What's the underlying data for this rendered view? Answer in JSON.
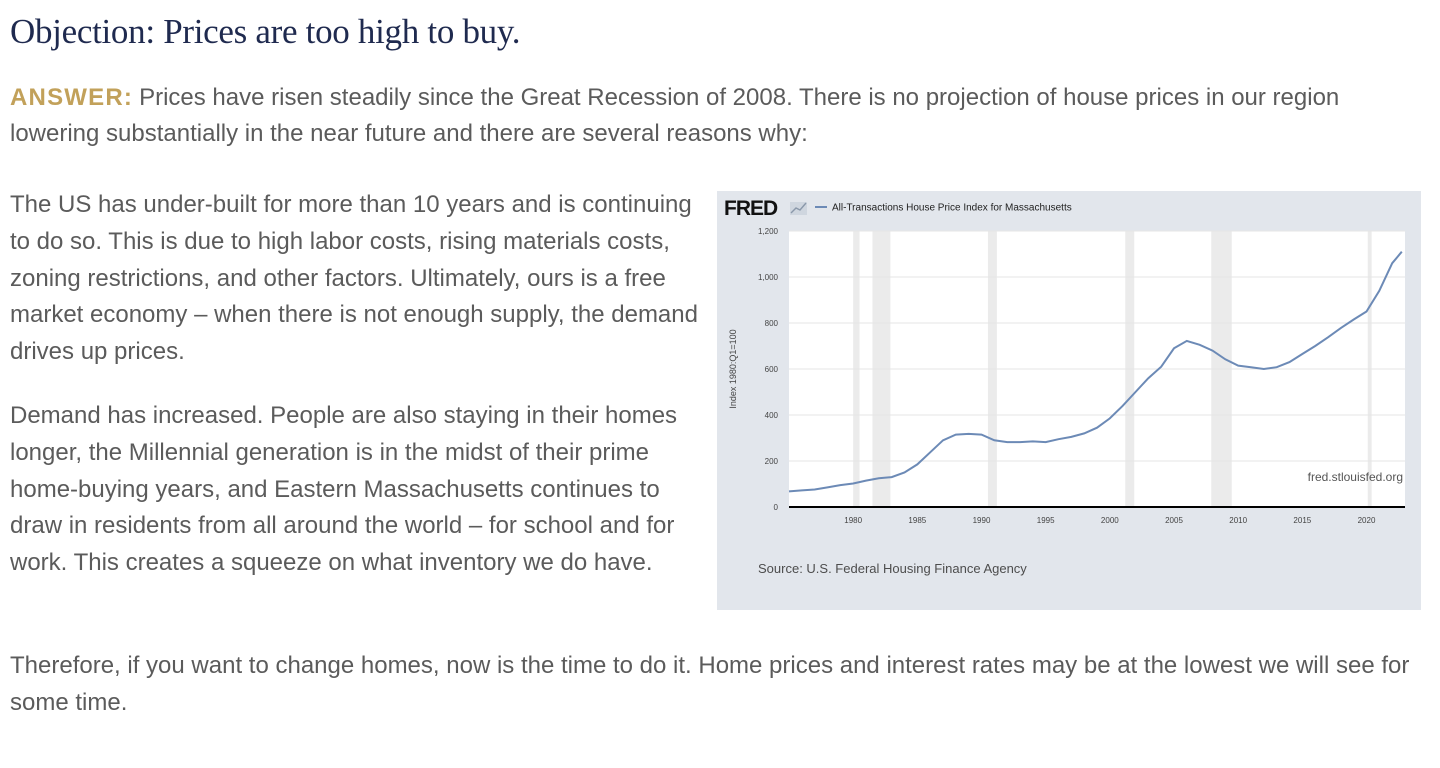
{
  "page": {
    "title": "Objection: Prices are too high to buy.",
    "answer_label": "ANSWER:",
    "answer_text": "Prices have risen steadily since the Great Recession of 2008. There is no projection of house prices in our region lowering substantially in the near future and there are several reasons why:",
    "paragraph_1": "The US has under-built for more than 10 years and is continuing to do so. This is due to high labor costs, rising materials costs, zoning restrictions, and other factors. Ultimately, ours is a free market economy – when there is not enough supply, the demand drives up prices.",
    "paragraph_2": "Demand has increased. People are also staying in their homes longer, the Millennial generation is in the midst of their prime home-buying years, and Eastern Massachusetts continues to draw in residents from all around the world – for school and for work. This creates a squeeze on what inventory we do have.",
    "paragraph_3": "Therefore, if you want to change homes, now is the time to do it. Home prices and interest rates may be at the lowest we will see for some time.",
    "colors": {
      "title": "#1f2a4f",
      "answer_label": "#c2a15a",
      "body_text": "#5b5b5b",
      "chart_bg": "#e2e6ec",
      "series_line": "#6c8ab6",
      "recession_band": "#ebebeb"
    }
  },
  "chart_data": {
    "type": "line",
    "logo": "FRED",
    "series": [
      {
        "name": "All-Transactions House Price Index for Massachusetts",
        "x": [
          1975,
          1976,
          1977,
          1978,
          1979,
          1980,
          1981,
          1982,
          1983,
          1984,
          1985,
          1986,
          1987,
          1988,
          1989,
          1990,
          1991,
          1992,
          1993,
          1994,
          1995,
          1996,
          1997,
          1998,
          1999,
          2000,
          2001,
          2002,
          2003,
          2004,
          2005,
          2006,
          2007,
          2008,
          2009,
          2010,
          2011,
          2012,
          2013,
          2014,
          2015,
          2016,
          2017,
          2018,
          2019,
          2020,
          2021,
          2022,
          2022.75
        ],
        "values": [
          68,
          72,
          76,
          85,
          95,
          102,
          115,
          125,
          130,
          150,
          185,
          238,
          290,
          315,
          318,
          315,
          290,
          282,
          282,
          285,
          282,
          295,
          305,
          320,
          345,
          385,
          440,
          500,
          560,
          610,
          690,
          722,
          705,
          680,
          642,
          615,
          608,
          600,
          608,
          630,
          665,
          700,
          738,
          778,
          815,
          850,
          940,
          1060,
          1110
        ]
      }
    ],
    "recession_bands": [
      [
        1980.0,
        1980.5
      ],
      [
        1981.5,
        1982.9
      ],
      [
        1990.5,
        1991.2
      ],
      [
        2001.2,
        2001.9
      ],
      [
        2007.9,
        2009.5
      ],
      [
        2020.1,
        2020.4
      ]
    ],
    "ylabel": "Index 1980:Q1=100",
    "xlim": [
      1975,
      2023
    ],
    "ylim": [
      0,
      1200
    ],
    "x_ticks": [
      "1980",
      "1985",
      "1990",
      "1995",
      "2000",
      "2005",
      "2010",
      "2015",
      "2020"
    ],
    "y_ticks": [
      "0",
      "200",
      "400",
      "600",
      "800",
      "1,000",
      "1,200"
    ],
    "grid": true,
    "legend": "top-left",
    "watermark": "fred.stlouisfed.org",
    "source": "Source: U.S. Federal Housing Finance Agency"
  }
}
